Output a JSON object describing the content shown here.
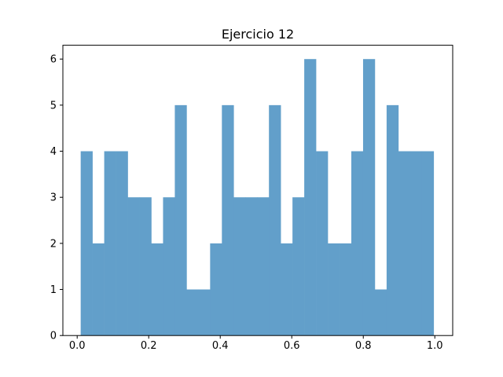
{
  "chart_data": {
    "type": "bar",
    "title": "Ejercicio 12",
    "xlabel": "",
    "ylabel": "",
    "xlim": [
      -0.04,
      1.05
    ],
    "ylim": [
      0,
      6.3
    ],
    "bins": {
      "start": 0.0098,
      "width": 0.0329,
      "counts": [
        4,
        2,
        4,
        4,
        3,
        3,
        2,
        3,
        5,
        1,
        1,
        2,
        5,
        3,
        3,
        3,
        5,
        2,
        3,
        6,
        4,
        2,
        2,
        4,
        6,
        1,
        5,
        4,
        4,
        4
      ]
    },
    "bar_color": "#629fca",
    "xticks": [
      {
        "value": 0.0,
        "label": "0.0"
      },
      {
        "value": 0.2,
        "label": "0.2"
      },
      {
        "value": 0.4,
        "label": "0.4"
      },
      {
        "value": 0.6,
        "label": "0.6"
      },
      {
        "value": 0.8,
        "label": "0.8"
      },
      {
        "value": 1.0,
        "label": "1.0"
      }
    ],
    "yticks": [
      {
        "value": 0,
        "label": "0"
      },
      {
        "value": 1,
        "label": "1"
      },
      {
        "value": 2,
        "label": "2"
      },
      {
        "value": 3,
        "label": "3"
      },
      {
        "value": 4,
        "label": "4"
      },
      {
        "value": 5,
        "label": "5"
      },
      {
        "value": 6,
        "label": "6"
      }
    ],
    "grid": false
  }
}
